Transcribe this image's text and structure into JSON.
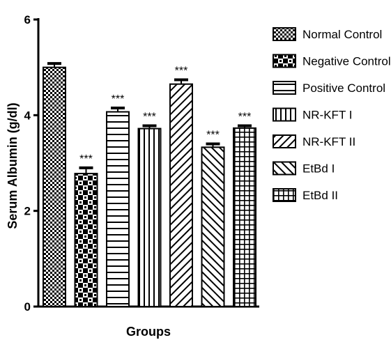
{
  "chart_data": {
    "type": "bar",
    "title": "",
    "xlabel": "Groups",
    "ylabel": "Serum Albumin (g/dl)",
    "ylim": [
      0,
      6
    ],
    "yticks": [
      "0",
      "2",
      "4",
      "6"
    ],
    "categories": [
      "Normal Control",
      "Negative Control",
      "Positive Control",
      "NR-KFT I",
      "NR-KFT II",
      "EtBd I",
      "EtBd II"
    ],
    "values": [
      5.0,
      2.78,
      4.07,
      3.72,
      4.65,
      3.33,
      3.73
    ],
    "errors": [
      0.08,
      0.12,
      0.08,
      0.06,
      0.09,
      0.07,
      0.05
    ],
    "significance": [
      "",
      "***",
      "***",
      "***",
      "***",
      "***",
      "***"
    ],
    "patterns": [
      "fine-checker",
      "coarse-checker",
      "horizontal-lines",
      "vertical-lines",
      "diagonal-forward",
      "diagonal-back",
      "grid"
    ],
    "legend": {
      "position": "right",
      "entries": [
        "Normal Control",
        "Negative Control",
        "Positive Control",
        "NR-KFT I",
        "NR-KFT II",
        "EtBd I",
        "EtBd II"
      ]
    },
    "grid": false,
    "colors": {
      "ink": "#000000",
      "background": "#ffffff"
    }
  }
}
